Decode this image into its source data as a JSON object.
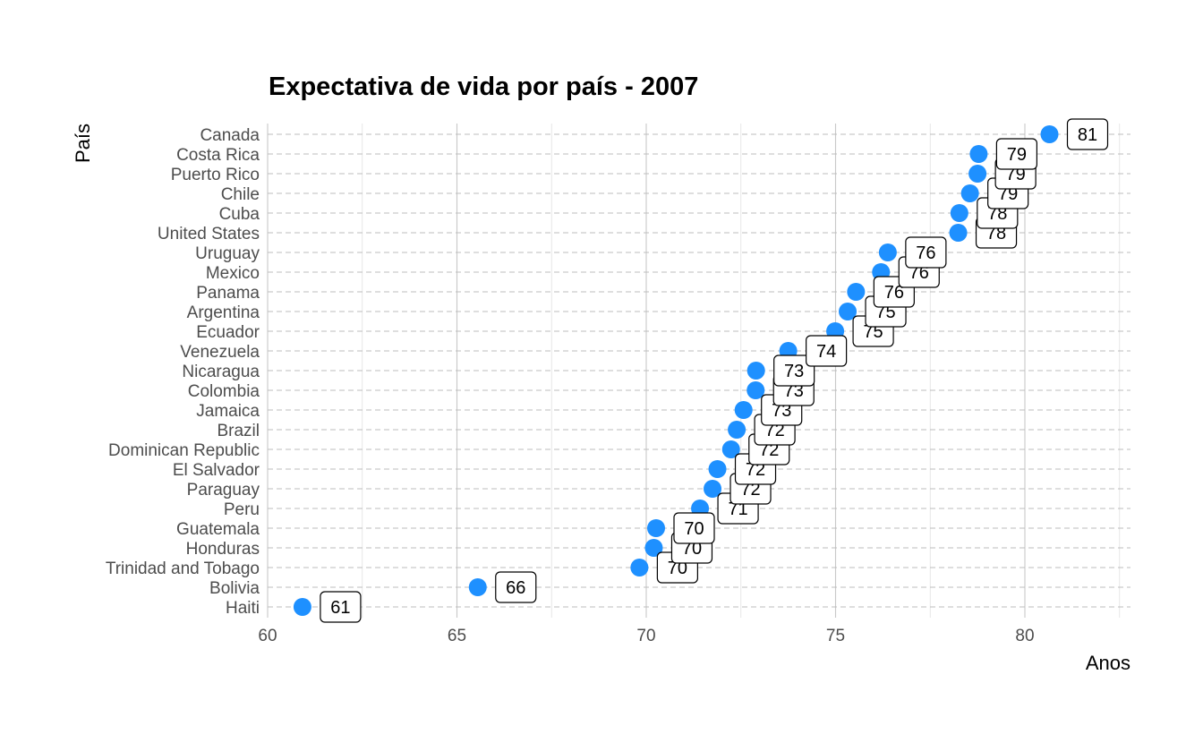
{
  "chart_data": {
    "type": "scatter",
    "title": "Expectativa de vida por país - 2007",
    "xlabel": "Anos",
    "ylabel": "País",
    "xlim": [
      60,
      82.5
    ],
    "xticks": [
      60,
      65,
      70,
      75,
      80
    ],
    "grid": true,
    "point_color": "#1E90FF",
    "categories": [
      "Canada",
      "Costa Rica",
      "Puerto Rico",
      "Chile",
      "Cuba",
      "United States",
      "Uruguay",
      "Mexico",
      "Panama",
      "Argentina",
      "Ecuador",
      "Venezuela",
      "Nicaragua",
      "Colombia",
      "Jamaica",
      "Brazil",
      "Dominican Republic",
      "El Salvador",
      "Paraguay",
      "Peru",
      "Guatemala",
      "Honduras",
      "Trinidad and Tobago",
      "Bolivia",
      "Haiti"
    ],
    "values": [
      80.65,
      78.78,
      78.75,
      78.55,
      78.27,
      78.24,
      76.38,
      76.2,
      75.54,
      75.32,
      74.99,
      73.75,
      72.9,
      72.89,
      72.57,
      72.39,
      72.24,
      71.88,
      71.75,
      71.42,
      70.26,
      70.2,
      69.82,
      65.55,
      60.92
    ],
    "labels": [
      "81",
      "79",
      "79",
      "79",
      "78",
      "78",
      "76",
      "76",
      "76",
      "75",
      "75",
      "74",
      "73",
      "73",
      "73",
      "72",
      "72",
      "72",
      "72",
      "71",
      "70",
      "70",
      "70",
      "66",
      "61"
    ]
  }
}
